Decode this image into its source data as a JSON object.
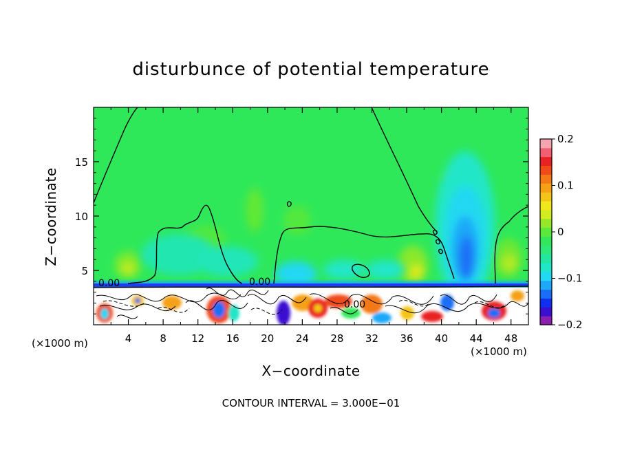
{
  "chart_data": {
    "type": "heatmap",
    "title": "disturbunce of potential temperature",
    "xlabel": "X−coordinate",
    "ylabel": "Z−coordinate",
    "x_multiplier": "(×1000 m)",
    "xlim": [
      0,
      50
    ],
    "ylim": [
      0,
      20
    ],
    "x_ticks": [
      4,
      8,
      12,
      16,
      20,
      24,
      28,
      32,
      36,
      40,
      44,
      48
    ],
    "y_ticks": [
      5,
      10,
      15
    ],
    "contour_labels": [
      "0.00",
      "0.00",
      "0.00"
    ],
    "contour_interval_text": "CONTOUR INTERVAL = 3.000E−01",
    "colorbar": {
      "min": -0.2,
      "max": 0.2,
      "tick_labels": [
        "0.2",
        "0.1",
        "0",
        "−0.1",
        "−0.2"
      ],
      "tick_values": [
        0.2,
        0.1,
        0,
        -0.1,
        -0.2
      ],
      "colors": [
        "#8b1fb0",
        "#3a0fd0",
        "#1030f0",
        "#1a6ef5",
        "#1fa8f8",
        "#22d8f2",
        "#22e6c8",
        "#23e6a0",
        "#2ee87a",
        "#32e85a",
        "#5ae83a",
        "#96e62a",
        "#d2ec20",
        "#f0e81a",
        "#f5c418",
        "#f5a016",
        "#f37816",
        "#f04a1a",
        "#e82222",
        "#f06070",
        "#f4a6b0"
      ]
    },
    "colors": {
      "background": "#2ee85a",
      "field_green": "#3ce84a"
    }
  }
}
